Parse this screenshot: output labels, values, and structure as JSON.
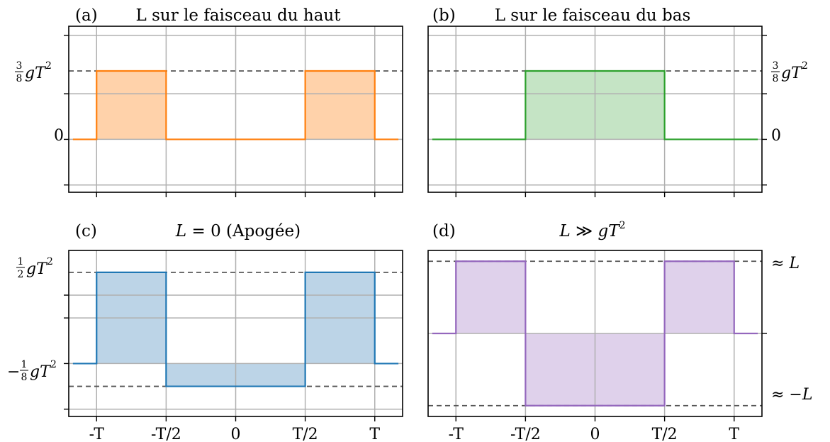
{
  "chart_data": [
    {
      "type": "line",
      "step": true,
      "panel_label": "(a)",
      "title": "L sur le faisceau du haut",
      "ytick_labels": [
        "0",
        "3/8·gT²"
      ],
      "xtick_labels": [],
      "xlim": [
        -1.2,
        1.2
      ],
      "ylim": [
        -0.29,
        0.62
      ],
      "dashed_levels": [
        0.375
      ],
      "color": "#ff7f0e",
      "fill_color": "#ffd2aa",
      "series": [
        {
          "x": [
            -1.17,
            -1,
            -1,
            -0.5,
            -0.5,
            0.5,
            0.5,
            1,
            1,
            1.17
          ],
          "y": [
            0,
            0,
            0.375,
            0.375,
            0,
            0,
            0.375,
            0.375,
            0,
            0
          ]
        }
      ]
    },
    {
      "type": "line",
      "step": true,
      "panel_label": "(b)",
      "title": "L sur le faisceau du bas",
      "ytick_labels": [
        "0",
        "3/8·gT²"
      ],
      "xtick_labels": [],
      "xlim": [
        -1.2,
        1.2
      ],
      "ylim": [
        -0.29,
        0.62
      ],
      "dashed_levels": [
        0.375
      ],
      "color": "#2ca02c",
      "fill_color": "#c5e4c5",
      "series": [
        {
          "x": [
            -1.17,
            -0.5,
            -0.5,
            0.5,
            0.5,
            1.17
          ],
          "y": [
            0,
            0,
            0.375,
            0.375,
            0,
            0
          ]
        }
      ]
    },
    {
      "type": "line",
      "step": true,
      "panel_label": "(c)",
      "title": "L = 0 (Apogée)",
      "ytick_labels": [
        "1/2·gT²",
        "−1/8·gT²"
      ],
      "xtick_labels": [
        "-T",
        "-T/2",
        "0",
        "T/2",
        "T"
      ],
      "xlim": [
        -1.2,
        1.2
      ],
      "ylim": [
        -0.29,
        0.62
      ],
      "dashed_levels": [
        0.5,
        -0.125
      ],
      "color": "#1f77b4",
      "fill_color": "#bcd4e7",
      "series": [
        {
          "x": [
            -1.17,
            -1,
            -1,
            -0.5,
            -0.5,
            0.5,
            0.5,
            1,
            1,
            1.17
          ],
          "y": [
            0,
            0,
            0.5,
            0.5,
            -0.125,
            -0.125,
            0.5,
            0.5,
            0,
            0
          ]
        }
      ]
    },
    {
      "type": "line",
      "step": true,
      "panel_label": "(d)",
      "title": "L ≫ gT²",
      "ytick_labels": [
        "≈ L",
        "≈ −L"
      ],
      "xtick_labels": [
        "-T",
        "-T/2",
        "0",
        "T/2",
        "T"
      ],
      "xlim": [
        -1.2,
        1.2
      ],
      "ylim": [
        -1.15,
        1.15
      ],
      "dashed_levels": [
        1,
        -1
      ],
      "color": "#9467bd",
      "fill_color": "#dfd1eb",
      "series": [
        {
          "x": [
            -1.17,
            -1,
            -1,
            -0.5,
            -0.5,
            0.5,
            0.5,
            1,
            1,
            1.17
          ],
          "y": [
            0,
            0,
            1,
            1,
            -1,
            -1,
            1,
            1,
            0,
            0
          ]
        }
      ]
    }
  ]
}
